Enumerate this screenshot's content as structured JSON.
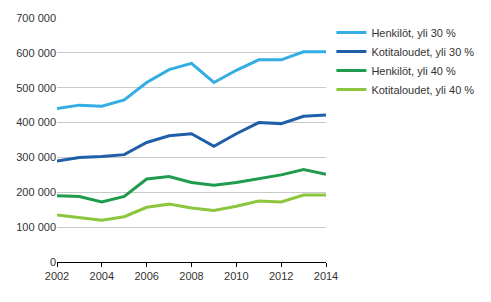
{
  "chart_data": {
    "type": "line",
    "x": [
      2002,
      2003,
      2004,
      2005,
      2006,
      2007,
      2008,
      2009,
      2010,
      2011,
      2012,
      2013,
      2014
    ],
    "series": [
      {
        "name": "Henkilöt, yli 30 %",
        "color": "#33ade3",
        "values": [
          440000,
          450000,
          447000,
          465000,
          515000,
          552000,
          570000,
          515000,
          550000,
          580000,
          580000,
          603000,
          603000
        ]
      },
      {
        "name": "Kotitaloudet, yli 30 %",
        "color": "#1f5ea8",
        "values": [
          290000,
          300000,
          303000,
          308000,
          343000,
          362000,
          368000,
          332000,
          368000,
          400000,
          397000,
          418000,
          422000
        ]
      },
      {
        "name": "Henkilöt, yli 40 %",
        "color": "#1f9b4e",
        "values": [
          190000,
          188000,
          172000,
          188000,
          238000,
          245000,
          228000,
          220000,
          228000,
          240000,
          250000,
          265000,
          252000
        ]
      },
      {
        "name": "Kotitaloudet, yli 40 %",
        "color": "#8cc63e",
        "values": [
          135000,
          128000,
          120000,
          130000,
          157000,
          166000,
          155000,
          148000,
          160000,
          175000,
          172000,
          192000,
          192000
        ]
      }
    ],
    "xlim": [
      2002,
      2014
    ],
    "xticks": [
      2002,
      2004,
      2006,
      2008,
      2010,
      2012,
      2014
    ],
    "ylim": [
      0,
      700000
    ],
    "yticks": [
      0,
      {
        "value": 100000,
        "label": "100 000"
      },
      {
        "value": 200000,
        "label": "200 000"
      },
      {
        "value": 300000,
        "label": "300 000"
      },
      {
        "value": 400000,
        "label": "400 000"
      },
      {
        "value": 500000,
        "label": "500 000"
      },
      {
        "value": 600000,
        "label": "600 000"
      },
      {
        "value": 700000,
        "label": "700 000"
      }
    ],
    "grid": true,
    "legend": "right"
  }
}
